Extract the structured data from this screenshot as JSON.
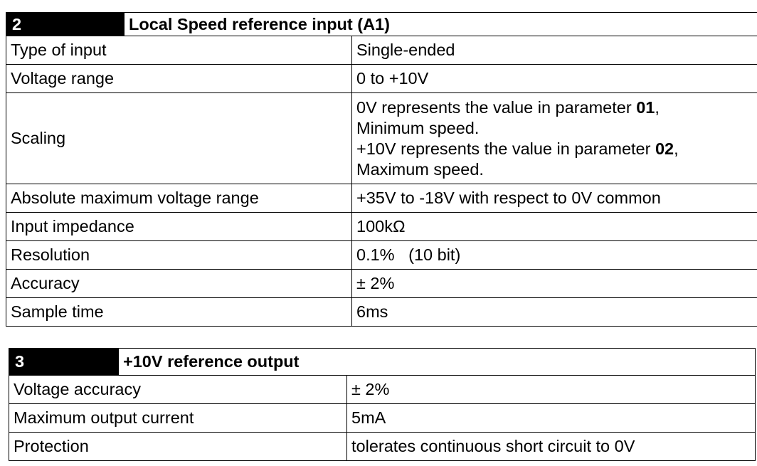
{
  "section2": {
    "number": "2",
    "title": "Local Speed reference input (A1)",
    "rows": [
      {
        "label": "Type of input",
        "value": "Single-ended"
      },
      {
        "label": "Voltage range",
        "value": "0 to +10V"
      },
      {
        "label": "Scaling",
        "lines": [
          {
            "pre": "0V represents the value in parameter ",
            "bold": "01",
            "post": ","
          },
          {
            "pre": "Minimum speed.",
            "bold": "",
            "post": ""
          },
          {
            "pre": "+10V represents the value in parameter ",
            "bold": "02",
            "post": ","
          },
          {
            "pre": "Maximum speed.",
            "bold": "",
            "post": ""
          }
        ]
      },
      {
        "label": "Absolute maximum voltage range",
        "value": "+35V to -18V with respect to 0V common"
      },
      {
        "label": "Input impedance",
        "value": "100kΩ"
      },
      {
        "label": "Resolution",
        "value": "0.1%   (10 bit)"
      },
      {
        "label": "Accuracy",
        "value": "± 2%"
      },
      {
        "label": "Sample time",
        "value": "6ms"
      }
    ]
  },
  "section3": {
    "number": "3",
    "title": "+10V reference output",
    "rows": [
      {
        "label": "Voltage accuracy",
        "value": "± 2%"
      },
      {
        "label": "Maximum output current",
        "value": "5mA"
      },
      {
        "label": "Protection",
        "value": "tolerates continuous short circuit to 0V"
      }
    ]
  }
}
